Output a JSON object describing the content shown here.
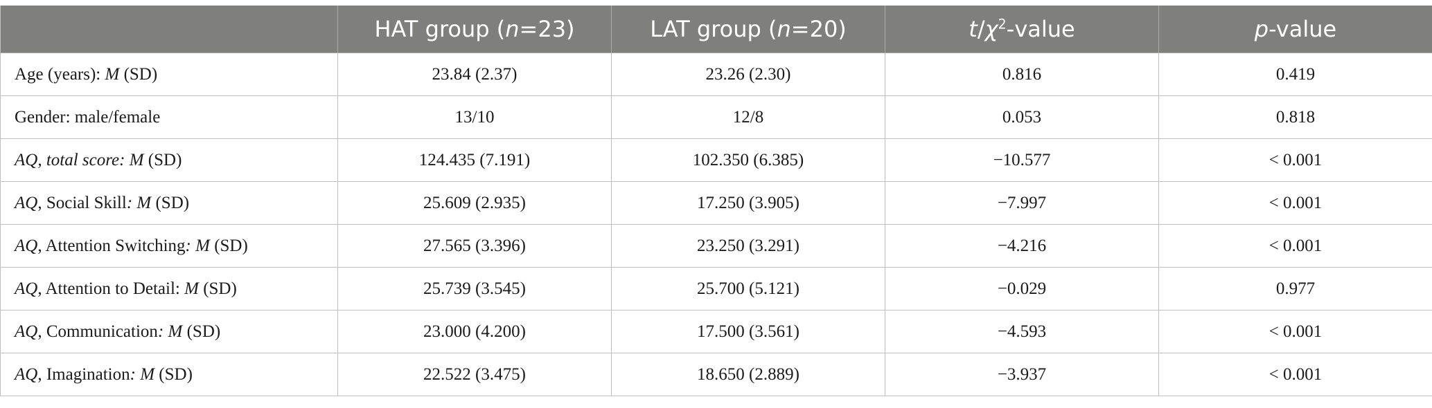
{
  "table": {
    "headers": {
      "col0": "",
      "col1_pre": "HAT group (",
      "col1_n": "n",
      "col1_post": "=23)",
      "col2_pre": "LAT group (",
      "col2_n": "n",
      "col2_post": "=20)",
      "col3_t": "t",
      "col3_slash": "/",
      "col3_chi": "χ",
      "col3_sup": "2",
      "col3_post": "-value",
      "col4_p": "p",
      "col4_post": "-value"
    },
    "rows": [
      {
        "label_parts": [
          "Age (years): ",
          "M",
          " (SD)"
        ],
        "hat": "23.84 (2.37)",
        "lat": "23.26 (2.30)",
        "t": "0.816",
        "p": "0.419"
      },
      {
        "label_parts": [
          "Gender: male/female",
          "",
          ""
        ],
        "hat": "13/10",
        "lat": "12/8",
        "t": "0.053",
        "p": "0.818"
      },
      {
        "label_parts": [
          "AQ, total score: M",
          "",
          " (SD)"
        ],
        "hat": "124.435 (7.191)",
        "lat": "102.350 (6.385)",
        "t": "−10.577",
        "p": "< 0.001"
      },
      {
        "label_parts": [
          "AQ",
          ", Social Skill",
          ": M",
          " (SD)"
        ],
        "hat": "25.609 (2.935)",
        "lat": "17.250 (3.905)",
        "t": "−7.997",
        "p": "< 0.001"
      },
      {
        "label_parts": [
          "AQ",
          ", Attention Switching",
          ": M",
          " (SD)"
        ],
        "hat": "27.565 (3.396)",
        "lat": "23.250 (3.291)",
        "t": "−4.216",
        "p": "< 0.001"
      },
      {
        "label_parts": [
          "AQ",
          ", Attention to Detail: ",
          "M",
          " (SD)"
        ],
        "hat": "25.739 (3.545)",
        "lat": "25.700 (5.121)",
        "t": "−0.029",
        "p": "0.977"
      },
      {
        "label_parts": [
          "AQ",
          ", Communication",
          ": M",
          " (SD)"
        ],
        "hat": "23.000 (4.200)",
        "lat": "17.500 (3.561)",
        "t": "−4.593",
        "p": "< 0.001"
      },
      {
        "label_parts": [
          "AQ",
          ", Imagination",
          ": M",
          " (SD)"
        ],
        "hat": "22.522 (3.475)",
        "lat": "18.650 (2.889)",
        "t": "−3.937",
        "p": "< 0.001"
      }
    ]
  },
  "colors": {
    "header_bg": "#7f807e",
    "header_text": "#ffffff",
    "border": "#bfbfbf"
  }
}
